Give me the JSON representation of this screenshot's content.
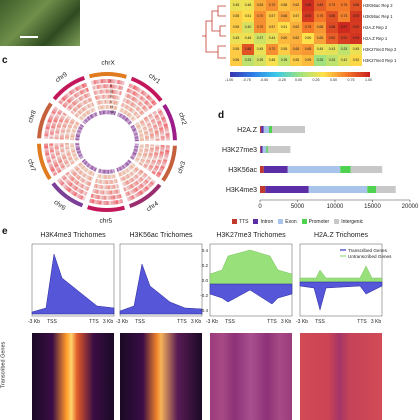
{
  "panels": {
    "c": "c",
    "d": "d",
    "e": "e"
  },
  "scale_bar": "",
  "heatmap": {
    "rows": [
      {
        "label": "H3K56ac Rep 2",
        "cells": [
          "0.45",
          "0.46",
          "0.63",
          "0.70",
          "0.58",
          "0.62",
          "0.96",
          "0.83",
          "0.75",
          "0.75",
          "0.86"
        ]
      },
      {
        "label": "H3K56ac Rep 1",
        "cells": [
          "0.55",
          "0.51",
          "0.70",
          "0.57",
          "0.66",
          "0.57",
          "0.93",
          "0.75",
          "0.86",
          "0.73",
          "0.93"
        ]
      },
      {
        "label": "H2A.Z Rep 2",
        "cells": [
          "0.55",
          "0.40",
          "0.70",
          "0.57",
          "0.51",
          "0.62",
          "0.75",
          "0.68",
          "0.88",
          "0.97",
          "0.92"
        ]
      },
      {
        "label": "H2A.Z Rep 1",
        "cells": [
          "0.45",
          "0.46",
          "0.37",
          "0.44",
          "0.60",
          "0.62",
          "0.50",
          "0.65",
          "0.82",
          "0.91",
          "0.94"
        ]
      },
      {
        "label": "H3K27me3 Rep 2",
        "cells": [
          "0.55",
          "0.86",
          "0.45",
          "0.70",
          "0.55",
          "0.65",
          "0.68",
          "0.45",
          "0.43",
          "0.33",
          "0.45"
        ]
      },
      {
        "label": "H3K27me3 Rep 1",
        "cells": [
          "0.55",
          "0.33",
          "0.39",
          "0.48",
          "0.35",
          "0.55",
          "0.59",
          "0.26",
          "0.33",
          "0.42",
          "0.52"
        ]
      }
    ],
    "colorbar_ticks": [
      "-1.00",
      "-0.75",
      "-0.50",
      "-0.25",
      "0.00",
      "0.25",
      "0.50",
      "0.75",
      "1.00"
    ]
  },
  "circos": {
    "chromosomes": [
      "chrX",
      "chr1",
      "chr2",
      "chr3",
      "chr4",
      "chr5",
      "chr6",
      "chr7",
      "chr8",
      "chr9"
    ],
    "tracks": [
      "i",
      "ii",
      "iii",
      "iv",
      "v",
      "vi",
      "vii"
    ]
  },
  "chart_data": [
    {
      "type": "bar",
      "title": "",
      "categories": [
        "H2A.Z",
        "H3K27me3",
        "H3K56ac",
        "H3K4me3"
      ],
      "series": [
        {
          "name": "TTS",
          "values": [
            150,
            100,
            500,
            700
          ]
        },
        {
          "name": "Intron",
          "values": [
            350,
            250,
            3200,
            5800
          ]
        },
        {
          "name": "Exon",
          "values": [
            700,
            500,
            7000,
            7800
          ]
        },
        {
          "name": "Promoter",
          "values": [
            400,
            200,
            1400,
            1200
          ]
        },
        {
          "name": "Intergenic",
          "values": [
            4400,
            3000,
            4200,
            2600
          ]
        }
      ],
      "xlim": [
        0,
        20000
      ],
      "xticks": [
        "0",
        "5000",
        "10000",
        "15000",
        "20000"
      ],
      "colors": [
        "#c0392b",
        "#5b2da6",
        "#a9c4ea",
        "#4fd24f",
        "#c8c8c8"
      ]
    },
    {
      "type": "area",
      "panels": [
        {
          "title": "H3K4me3 Trichomes",
          "xticks": [
            "-3 Kb",
            "TSS",
            "TTS",
            "3 Kb"
          ]
        },
        {
          "title": "H3K56ac Trichomes",
          "xticks": [
            "-3 Kb",
            "TSS",
            "TTS",
            "3 Kb"
          ]
        },
        {
          "title": "H3K27me3 Trichomes",
          "xticks": [
            "-3 Kb",
            "TSS",
            "TTS",
            "3 Kb"
          ]
        },
        {
          "title": "H2A.Z Trichomes",
          "xticks": [
            "-3 Kb",
            "TSS",
            "TTS",
            "3 Kb"
          ]
        }
      ],
      "series": [
        {
          "name": "Transcribed Genes",
          "color": "#3535c8"
        },
        {
          "name": "Untranscribed Genes",
          "color": "#98e07a"
        }
      ],
      "yticks": [
        "0.4",
        "0.2",
        "0.0",
        "-0.2",
        "-0.4"
      ]
    }
  ],
  "heatmap_ylabel": "Transcribed Genes"
}
